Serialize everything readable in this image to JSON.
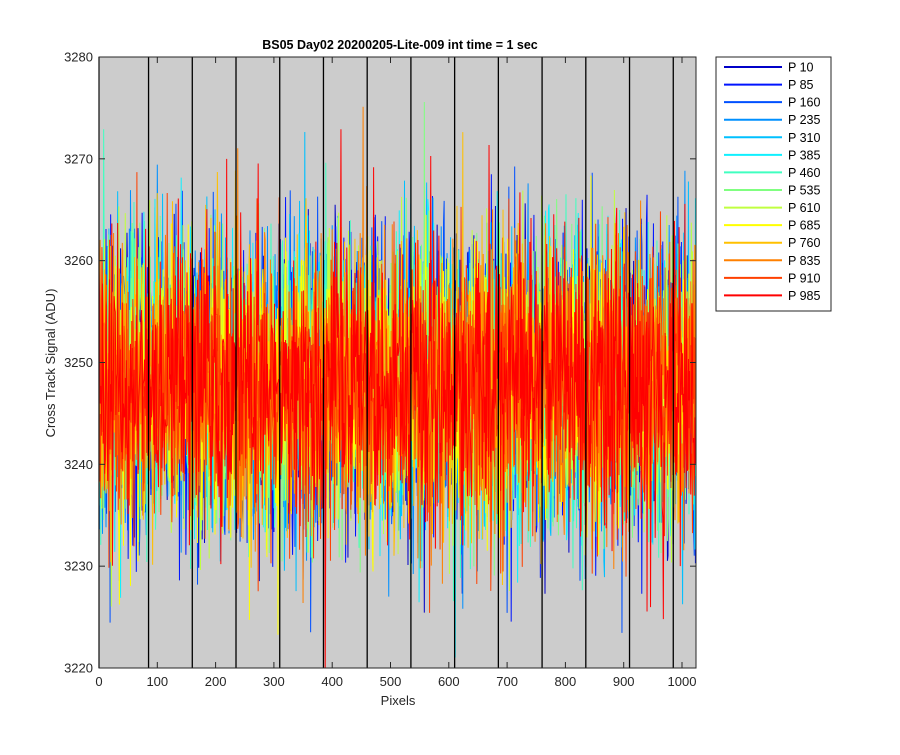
{
  "chart_data": {
    "type": "line",
    "title": "BS05 Day02 20200205-Lite-009 int time = 1 sec",
    "xlabel": "Pixels",
    "ylabel": "Cross Track Signal (ADU)",
    "xlim": [
      0,
      1024
    ],
    "ylim": [
      3220,
      3280
    ],
    "xticks": [
      0,
      100,
      200,
      300,
      400,
      500,
      600,
      700,
      800,
      900,
      1000
    ],
    "yticks": [
      3220,
      3230,
      3240,
      3250,
      3260,
      3270,
      3280
    ],
    "grid": false,
    "background_color": "#cccccc",
    "legend_position": "outside-right-top",
    "vertical_lines_x": [
      0,
      85,
      160,
      235,
      310,
      385,
      460,
      535,
      610,
      685,
      760,
      835,
      910,
      985
    ],
    "signal_mean": 3248,
    "signal_range_typical": [
      3234,
      3262
    ],
    "signal_extremes": [
      3220,
      3279
    ],
    "num_pixels": 1024,
    "series": [
      {
        "name": "P 10",
        "color": "#0000c8"
      },
      {
        "name": "P 85",
        "color": "#0014ff"
      },
      {
        "name": "P 160",
        "color": "#0050ff"
      },
      {
        "name": "P 235",
        "color": "#0090ff"
      },
      {
        "name": "P 310",
        "color": "#00c0ff"
      },
      {
        "name": "P 385",
        "color": "#10f0ff"
      },
      {
        "name": "P 460",
        "color": "#40ffc0"
      },
      {
        "name": "P 535",
        "color": "#80ff80"
      },
      {
        "name": "P 610",
        "color": "#c0ff40"
      },
      {
        "name": "P 685",
        "color": "#ffff00"
      },
      {
        "name": "P 760",
        "color": "#ffc000"
      },
      {
        "name": "P 835",
        "color": "#ff8000"
      },
      {
        "name": "P 910",
        "color": "#ff4000"
      },
      {
        "name": "P 985",
        "color": "#ff0000"
      }
    ]
  }
}
